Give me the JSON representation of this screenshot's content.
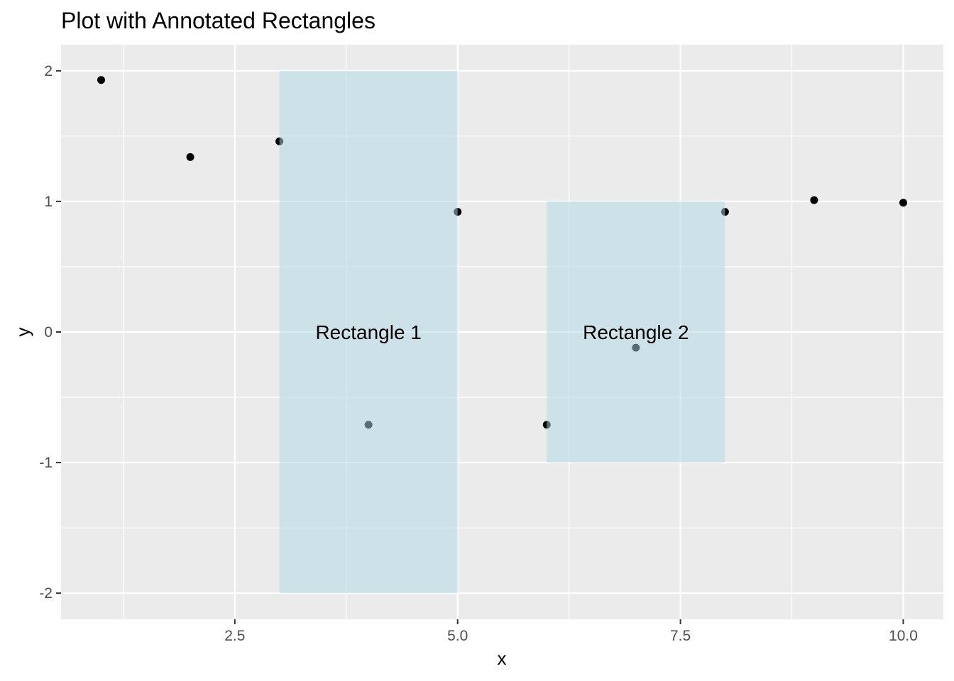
{
  "chart_data": {
    "type": "scatter",
    "title": "Plot with Annotated Rectangles",
    "xlabel": "x",
    "ylabel": "y",
    "xlim": [
      0.55,
      10.45
    ],
    "ylim": [
      -2.2,
      2.2
    ],
    "x_ticks": [
      2.5,
      5.0,
      7.5,
      10.0
    ],
    "x_tick_labels": [
      "2.5",
      "5.0",
      "7.5",
      "10.0"
    ],
    "y_ticks": [
      -2,
      -1,
      0,
      1,
      2
    ],
    "y_tick_labels": [
      "-2",
      "-1",
      "0",
      "1",
      "2"
    ],
    "x_minor": [
      1.25,
      3.75,
      6.25,
      8.75
    ],
    "y_minor": [
      -1.5,
      -0.5,
      0.5,
      1.5
    ],
    "grid": true,
    "points": {
      "x": [
        1,
        2,
        3,
        4,
        5,
        6,
        7,
        8,
        9,
        10
      ],
      "y": [
        1.93,
        1.34,
        1.46,
        -0.71,
        0.92,
        -0.71,
        -0.12,
        0.92,
        1.01,
        0.99
      ]
    },
    "rectangles": [
      {
        "xmin": 3,
        "xmax": 5,
        "ymin": -2,
        "ymax": 2,
        "label": "Rectangle 1",
        "label_x": 4,
        "label_y": 0
      },
      {
        "xmin": 6,
        "xmax": 8,
        "ymin": -1,
        "ymax": 1,
        "label": "Rectangle 2",
        "label_x": 7,
        "label_y": 0
      }
    ],
    "colors": {
      "panel": "#ebebeb",
      "grid_major": "#ffffff",
      "rect_fill": "#add8e6",
      "point": "#000000"
    }
  }
}
